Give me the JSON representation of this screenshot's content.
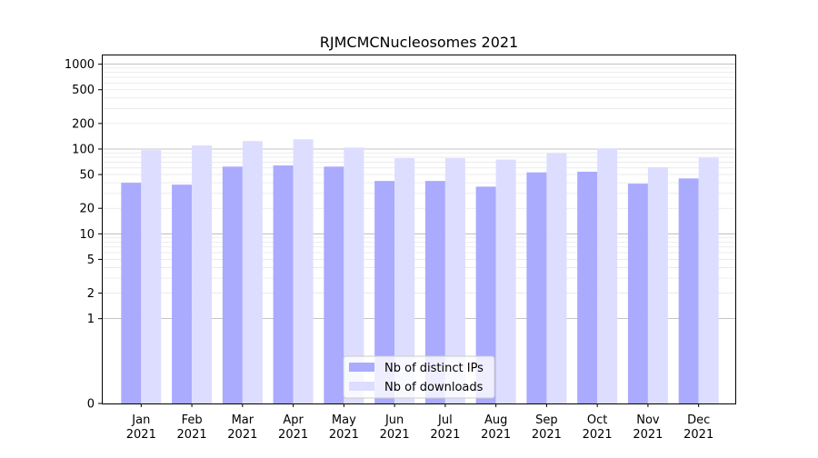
{
  "chart_data": {
    "type": "bar",
    "title": "RJMCMCNucleosomes 2021",
    "xlabel": "",
    "ylabel": "",
    "yscale": "symlog",
    "ylim": [
      0,
      1300
    ],
    "grid": true,
    "legend_position": "lower center",
    "categories": [
      "Jan\n2021",
      "Feb\n2021",
      "Mar\n2021",
      "Apr\n2021",
      "May\n2021",
      "Jun\n2021",
      "Jul\n2021",
      "Aug\n2021",
      "Sep\n2021",
      "Oct\n2021",
      "Nov\n2021",
      "Dec\n2021"
    ],
    "y_ticks": [
      0,
      1,
      2,
      5,
      10,
      20,
      50,
      100,
      200,
      500,
      1000
    ],
    "series": [
      {
        "name": "Nb of distinct IPs",
        "color": "#aaaaff",
        "values": [
          40,
          38,
          62,
          64,
          62,
          42,
          42,
          36,
          53,
          54,
          39,
          45
        ]
      },
      {
        "name": "Nb of downloads",
        "color": "#ddddff",
        "values": [
          97,
          110,
          124,
          130,
          104,
          78,
          78,
          75,
          89,
          102,
          61,
          79
        ]
      }
    ]
  }
}
